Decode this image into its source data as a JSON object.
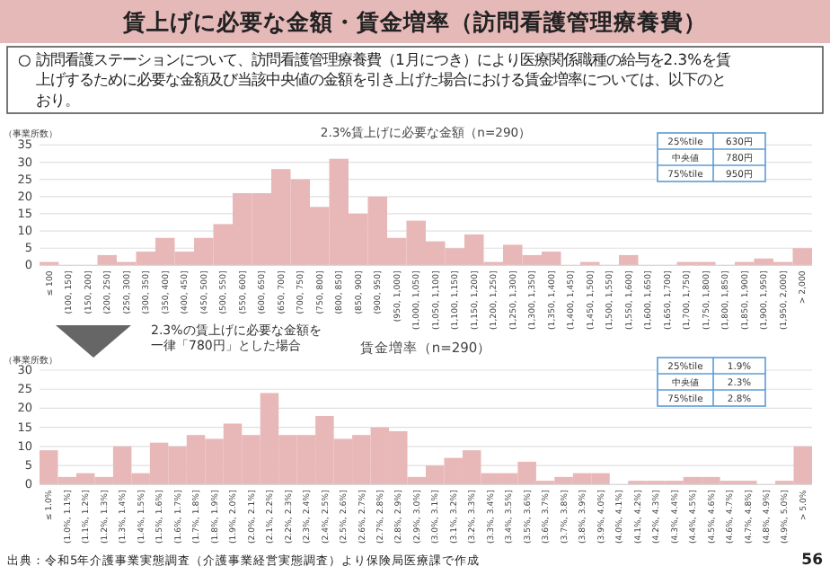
{
  "chart_data": [
    {
      "type": "bar",
      "title": "2.3%賃上げに必要な金額（n=290）",
      "ylabel": "（事業所数）",
      "categories": [
        "≤ 100",
        "(100, 150]",
        "(150, 200]",
        "(200, 250]",
        "(250, 300]",
        "(300, 350]",
        "(350, 400]",
        "(400, 450]",
        "(450, 500]",
        "(500, 550]",
        "(550, 600]",
        "(600, 650]",
        "(650, 700]",
        "(700, 750]",
        "(750, 800]",
        "(800, 850]",
        "(850, 900]",
        "(900, 950]",
        "(950, 1,000]",
        "(1,000, 1,050]",
        "(1,050, 1,100]",
        "(1,100, 1,150]",
        "(1,150, 1,200]",
        "(1,200, 1,250]",
        "(1,250, 1,300]",
        "(1,300, 1,350]",
        "(1,350, 1,400]",
        "(1,400, 1,450]",
        "(1,450, 1,500]",
        "(1,500, 1,550]",
        "(1,550, 1,600]",
        "(1,600, 1,650]",
        "(1,650, 1,700]",
        "(1,700, 1,750]",
        "(1,750, 1,800]",
        "(1,800, 1,850]",
        "(1,850, 1,900]",
        "(1,900, 1,950]",
        "(1,950, 2,000]",
        "> 2,000"
      ],
      "values": [
        1,
        0,
        0,
        3,
        1,
        4,
        8,
        4,
        8,
        12,
        21,
        21,
        28,
        25,
        17,
        31,
        15,
        20,
        8,
        13,
        7,
        5,
        9,
        1,
        6,
        3,
        4,
        0,
        1,
        0,
        3,
        0,
        0,
        1,
        1,
        0,
        1,
        2,
        1,
        5
      ],
      "color": "#e8b7b7",
      "ylim": [
        0,
        35
      ],
      "yticks": [
        0,
        5,
        10,
        15,
        20,
        25,
        30,
        35
      ],
      "grid": "y",
      "annotations": [
        "賃上げに必要な金額・賃金増率（訪問看護管理療養費）",
        "○ 訪問看護ステーションについて、訪問看護管理療養費（1月につき）により医療関係職種の給与を2.3%を賃上げするために必要な金額及び当該中央値の金額を引き上げた場合における賃金増率については、以下のとおり。",
        "25%tile",
        "630円",
        "中央値",
        "780円",
        "75%tile",
        "950円"
      ]
    },
    {
      "type": "bar",
      "title": "賃金増率（n=290）",
      "ylabel": "（事業所数）",
      "categories": [
        "≤ 1.0%",
        "(1.0%, 1.1%]",
        "(1.1%, 1.2%]",
        "(1.2%, 1.3%]",
        "(1.3%, 1.4%]",
        "(1.4%, 1.5%]",
        "(1.5%, 1.6%]",
        "(1.6%, 1.7%]",
        "(1.7%, 1.8%]",
        "(1.8%, 1.9%]",
        "(1.9%, 2.0%]",
        "(2.0%, 2.1%]",
        "(2.1%, 2.2%]",
        "(2.2%, 2.3%]",
        "(2.3%, 2.4%]",
        "(2.4%, 2.5%]",
        "(2.5%, 2.6%]",
        "(2.6%, 2.7%]",
        "(2.7%, 2.8%]",
        "(2.8%, 2.9%]",
        "(2.9%, 3.0%]",
        "(3.0%, 3.1%]",
        "(3.1%, 3.2%]",
        "(3.2%, 3.3%]",
        "(3.3%, 3.4%]",
        "(3.4%, 3.5%]",
        "(3.5%, 3.6%]",
        "(3.6%, 3.7%]",
        "(3.7%, 3.8%]",
        "(3.8%, 3.9%]",
        "(3.9%, 4.0%]",
        "(4.0%, 4.1%]",
        "(4.1%, 4.2%]",
        "(4.2%, 4.3%]",
        "(4.3%, 4.4%]",
        "(4.4%, 4.5%]",
        "(4.5%, 4.6%]",
        "(4.6%, 4.7%]",
        "(4.7%, 4.8%]",
        "(4.8%, 4.9%]",
        "(4.9%, 5.0%]",
        "> 5.0%"
      ],
      "values": [
        9,
        2,
        3,
        2,
        10,
        3,
        11,
        10,
        13,
        12,
        16,
        13,
        24,
        13,
        13,
        18,
        12,
        13,
        15,
        14,
        2,
        5,
        7,
        9,
        3,
        3,
        6,
        1,
        2,
        3,
        3,
        0,
        1,
        1,
        1,
        2,
        2,
        1,
        1,
        0,
        1,
        10
      ],
      "color": "#e8b7b7",
      "ylim": [
        0,
        30
      ],
      "yticks": [
        0,
        5,
        10,
        15,
        20,
        25,
        30
      ],
      "grid": "y",
      "annotations": [
        "2.3%の賃上げに必要な金額を一律「780円」とした場合",
        "25%tile",
        "1.9%",
        "中央値",
        "2.3%",
        "75%tile",
        "2.8%",
        "出典：令和5年介護事業実態調査（介護事業経営実態調査）より保険局医療課で作成",
        "56"
      ]
    }
  ]
}
